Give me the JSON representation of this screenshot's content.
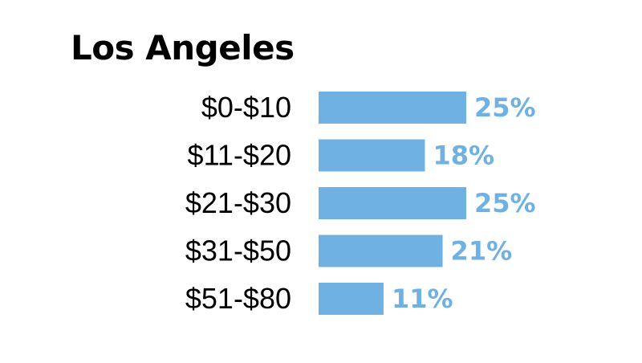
{
  "colors": {
    "bar": "#6fb1e2",
    "label": "#6fb1e2",
    "text": "#000000"
  },
  "chart_data": {
    "type": "bar",
    "orientation": "horizontal",
    "title": "Los Angeles",
    "categories": [
      "$0-$10",
      "$11-$20",
      "$21-$30",
      "$31-$50",
      "$51-$80"
    ],
    "values": [
      25,
      18,
      25,
      21,
      11
    ],
    "value_labels": [
      "25%",
      "18%",
      "25%",
      "21%",
      "11%"
    ],
    "unit": "%",
    "grid": false,
    "legend": "none"
  }
}
